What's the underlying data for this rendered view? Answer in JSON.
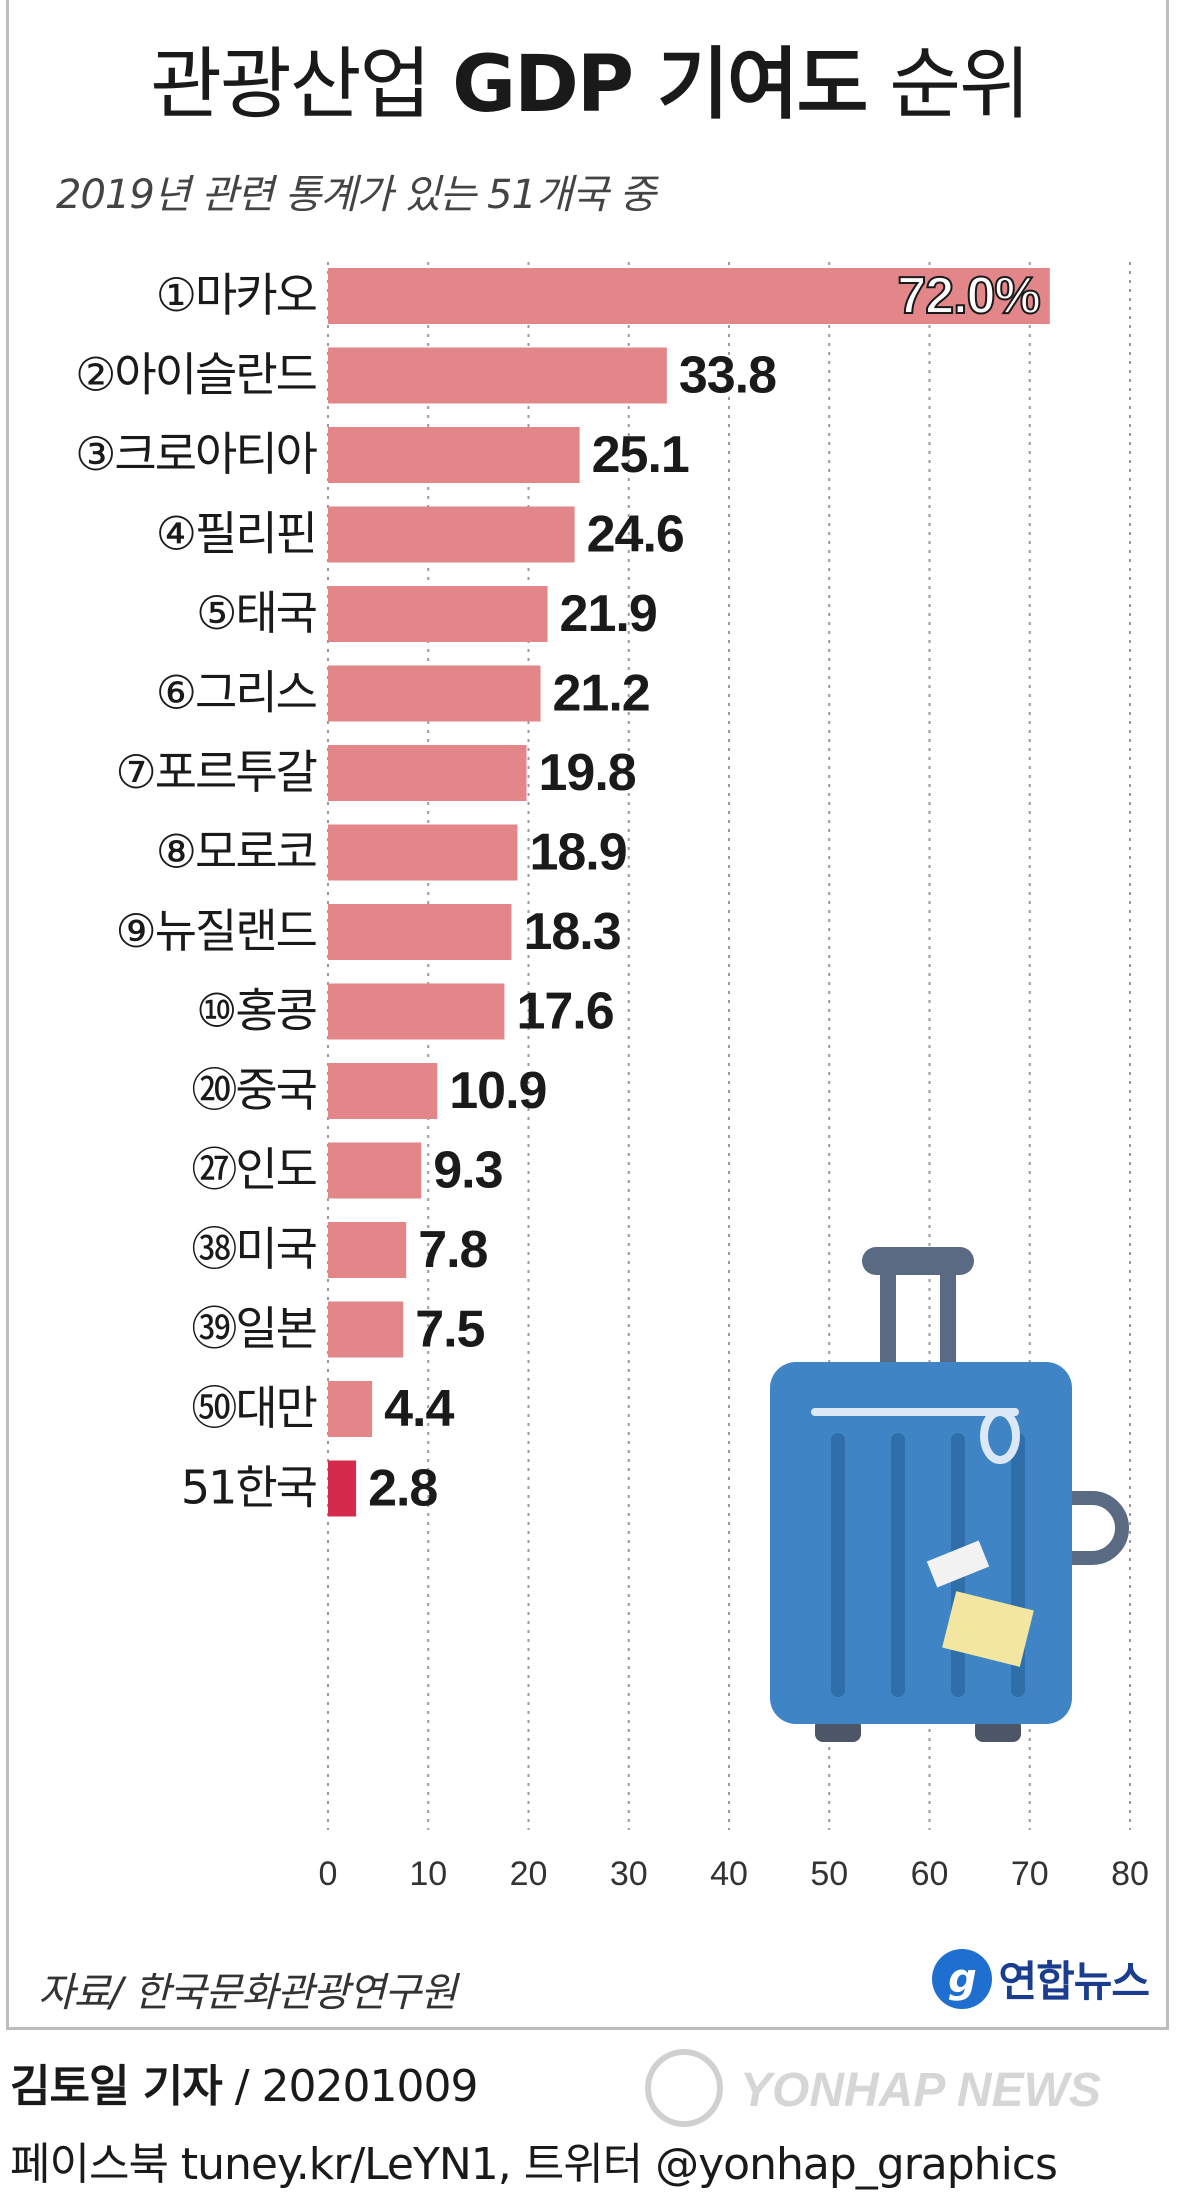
{
  "title_regular_1": "관광산업 ",
  "title_bold": "GDP 기여도",
  "title_regular_2": " 순위",
  "subtitle": "2019년 관련 통계가 있는 51개국 중",
  "source": "자료/ 한국문화관광연구원",
  "logo_mark": "g",
  "logo_text": "연합뉴스",
  "reporter": "김토일 기자",
  "date_line": " / 20201009",
  "social": "페이스북 tuney.kr/LeYN1, 트위터 @yonhap_graphics",
  "watermark": "YONHAP NEWS",
  "colors": {
    "bar": "#e2868a",
    "highlight_bar": "#d42a4b",
    "grid": "#9a9a9a",
    "suitcase_body": "#3f85c6",
    "suitcase_stripe": "#2f6ea8",
    "suitcase_handle": "#5a6a82",
    "tag": "#f3e6a1"
  },
  "chart_data": {
    "type": "bar",
    "orientation": "horizontal",
    "categories": [
      "①마카오",
      "②아이슬란드",
      "③크로아티아",
      "④필리핀",
      "⑤태국",
      "⑥그리스",
      "⑦포르투갈",
      "⑧모로코",
      "⑨뉴질랜드",
      "⑩홍콩",
      "⑳중국",
      "㉗인도",
      "㊳미국",
      "㊴일본",
      "㊿대만",
      "51한국"
    ],
    "values": [
      72.0,
      33.8,
      25.1,
      24.6,
      21.9,
      21.2,
      19.8,
      18.9,
      18.3,
      17.6,
      10.9,
      9.3,
      7.8,
      7.5,
      4.4,
      2.8
    ],
    "value_labels": [
      "72.0%",
      "33.8",
      "25.1",
      "24.6",
      "21.9",
      "21.2",
      "19.8",
      "18.9",
      "18.3",
      "17.6",
      "10.9",
      "9.3",
      "7.8",
      "7.5",
      "4.4",
      "2.8"
    ],
    "highlight_index": 15,
    "xlim": [
      0,
      80
    ],
    "xticks": [
      0,
      10,
      20,
      30,
      40,
      50,
      60,
      70,
      80
    ],
    "grid": true,
    "legend": "none"
  }
}
